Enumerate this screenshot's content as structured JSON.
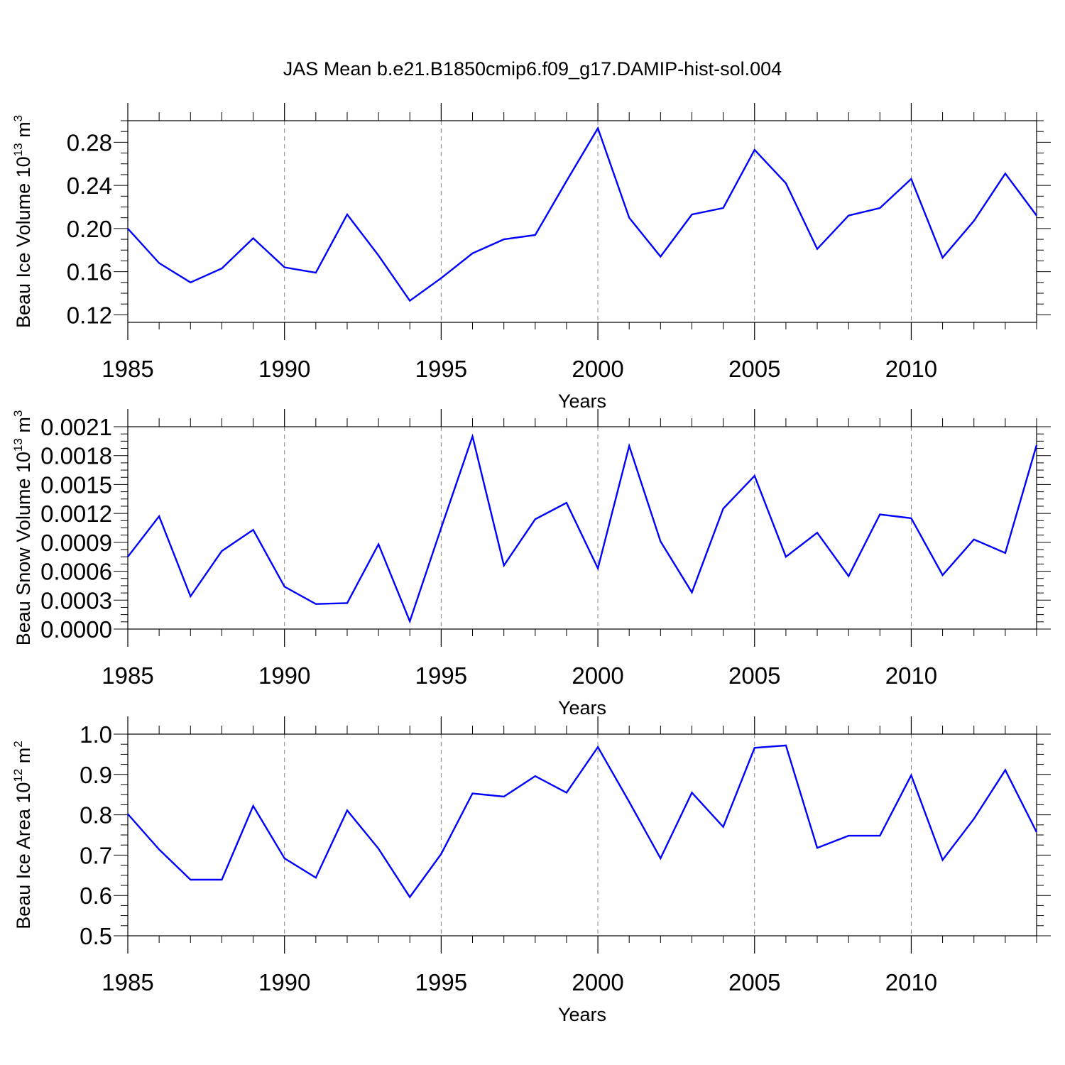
{
  "figure_title": "JAS Mean b.e21.B1850cmip6.f09_g17.DAMIP-hist-sol.004",
  "line_color": "#0000ff",
  "grid_color": "#888888",
  "chart_data": [
    {
      "type": "line",
      "title": "JAS Mean b.e21.B1850cmip6.f09_g17.DAMIP-hist-sol.004",
      "xlabel": "Years",
      "ylabel": "Beau Ice Volume 10",
      "ylabel_sup": "13",
      "ylabel_unit": "m",
      "ylabel_unit_sup": "3",
      "xlim": [
        1985,
        2014
      ],
      "ylim": [
        0.113,
        0.3
      ],
      "yticks": [
        "0.12",
        "0.16",
        "0.20",
        "0.24",
        "0.28"
      ],
      "xticks": [
        "1985",
        "1990",
        "1995",
        "2000",
        "2005",
        "2010"
      ],
      "x": [
        1985,
        1986,
        1987,
        1988,
        1989,
        1990,
        1991,
        1992,
        1993,
        1994,
        1995,
        1996,
        1997,
        1998,
        1999,
        2000,
        2001,
        2002,
        2003,
        2004,
        2005,
        2006,
        2007,
        2008,
        2009,
        2010,
        2011,
        2012,
        2013,
        2014
      ],
      "values": [
        0.2,
        0.168,
        0.15,
        0.163,
        0.191,
        0.164,
        0.159,
        0.213,
        0.175,
        0.133,
        0.154,
        0.177,
        0.19,
        0.194,
        0.244,
        0.293,
        0.21,
        0.174,
        0.213,
        0.219,
        0.273,
        0.242,
        0.181,
        0.212,
        0.219,
        0.246,
        0.173,
        0.207,
        0.251,
        0.212
      ]
    },
    {
      "type": "line",
      "xlabel": "Years",
      "ylabel": "Beau Snow Volume 10",
      "ylabel_sup": "13",
      "ylabel_unit": "m",
      "ylabel_unit_sup": "3",
      "xlim": [
        1985,
        2014
      ],
      "ylim": [
        0.0,
        0.0021
      ],
      "yticks": [
        "0.0000",
        "0.0003",
        "0.0006",
        "0.0009",
        "0.0012",
        "0.0015",
        "0.0018",
        "0.0021"
      ],
      "xticks": [
        "1985",
        "1990",
        "1995",
        "2000",
        "2005",
        "2010"
      ],
      "x": [
        1985,
        1986,
        1987,
        1988,
        1989,
        1990,
        1991,
        1992,
        1993,
        1994,
        1995,
        1996,
        1997,
        1998,
        1999,
        2000,
        2001,
        2002,
        2003,
        2004,
        2005,
        2006,
        2007,
        2008,
        2009,
        2010,
        2011,
        2012,
        2013,
        2014
      ],
      "values": [
        0.00075,
        0.00117,
        0.00034,
        0.00081,
        0.00103,
        0.00044,
        0.00026,
        0.00027,
        0.00088,
        8e-05,
        0.00105,
        0.002,
        0.00066,
        0.00114,
        0.00131,
        0.00063,
        0.0019,
        0.00091,
        0.00038,
        0.00125,
        0.00159,
        0.00075,
        0.001,
        0.00055,
        0.00119,
        0.00115,
        0.00056,
        0.00093,
        0.00079,
        0.00191
      ]
    },
    {
      "type": "line",
      "xlabel": "Years",
      "ylabel": "Beau Ice Area 10",
      "ylabel_sup": "12",
      "ylabel_unit": "m",
      "ylabel_unit_sup": "2",
      "xlim": [
        1985,
        2014
      ],
      "ylim": [
        0.5,
        1.0
      ],
      "yticks": [
        "0.5",
        "0.6",
        "0.7",
        "0.8",
        "0.9",
        "1.0"
      ],
      "xticks": [
        "1985",
        "1990",
        "1995",
        "2000",
        "2005",
        "2010"
      ],
      "x": [
        1985,
        1986,
        1987,
        1988,
        1989,
        1990,
        1991,
        1992,
        1993,
        1994,
        1995,
        1996,
        1997,
        1998,
        1999,
        2000,
        2001,
        2002,
        2003,
        2004,
        2005,
        2006,
        2007,
        2008,
        2009,
        2010,
        2011,
        2012,
        2013,
        2014
      ],
      "values": [
        0.802,
        0.714,
        0.639,
        0.639,
        0.822,
        0.692,
        0.644,
        0.811,
        0.716,
        0.596,
        0.703,
        0.853,
        0.845,
        0.896,
        0.855,
        0.968,
        0.832,
        0.692,
        0.855,
        0.77,
        0.966,
        0.972,
        0.718,
        0.748,
        0.748,
        0.898,
        0.688,
        0.79,
        0.911,
        0.757
      ]
    }
  ]
}
